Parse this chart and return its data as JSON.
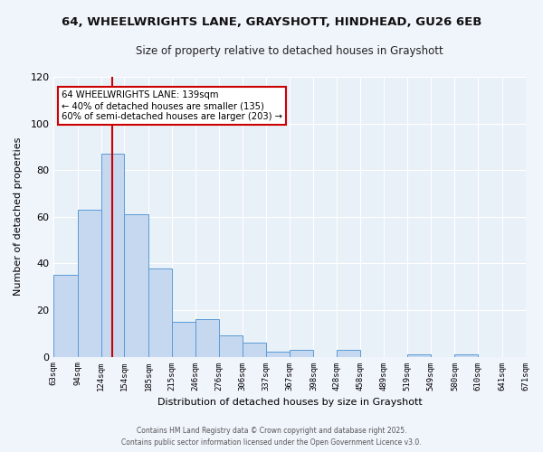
{
  "title": "64, WHEELWRIGHTS LANE, GRAYSHOTT, HINDHEAD, GU26 6EB",
  "subtitle": "Size of property relative to detached houses in Grayshott",
  "xlabel": "Distribution of detached houses by size in Grayshott",
  "ylabel": "Number of detached properties",
  "bar_values": [
    35,
    63,
    87,
    61,
    38,
    15,
    16,
    9,
    6,
    2,
    3,
    0,
    3,
    0,
    0,
    1,
    0,
    1,
    0,
    0
  ],
  "bin_edges": [
    63,
    94,
    124,
    154,
    185,
    215,
    246,
    276,
    306,
    337,
    367,
    398,
    428,
    458,
    489,
    519,
    549,
    580,
    610,
    641,
    671
  ],
  "bar_color": "#c5d8f0",
  "bar_edge_color": "#5b9bd5",
  "vline_x": 139,
  "vline_color": "#cc0000",
  "ylim": [
    0,
    120
  ],
  "yticks": [
    0,
    20,
    40,
    60,
    80,
    100,
    120
  ],
  "annotation_title": "64 WHEELWRIGHTS LANE: 139sqm",
  "annotation_line1": "← 40% of detached houses are smaller (135)",
  "annotation_line2": "60% of semi-detached houses are larger (203) →",
  "annotation_box_color": "#ffffff",
  "annotation_box_edge": "#cc0000",
  "fig_bg_color": "#f0f4fb",
  "plot_bg_color": "#e8f0f8",
  "footer1": "Contains HM Land Registry data © Crown copyright and database right 2025.",
  "footer2": "Contains public sector information licensed under the Open Government Licence v3.0.",
  "grid_color": "#ffffff",
  "tick_labels": [
    "63sqm",
    "94sqm",
    "124sqm",
    "154sqm",
    "185sqm",
    "215sqm",
    "246sqm",
    "276sqm",
    "306sqm",
    "337sqm",
    "367sqm",
    "398sqm",
    "428sqm",
    "458sqm",
    "489sqm",
    "519sqm",
    "549sqm",
    "580sqm",
    "610sqm",
    "641sqm",
    "671sqm"
  ]
}
